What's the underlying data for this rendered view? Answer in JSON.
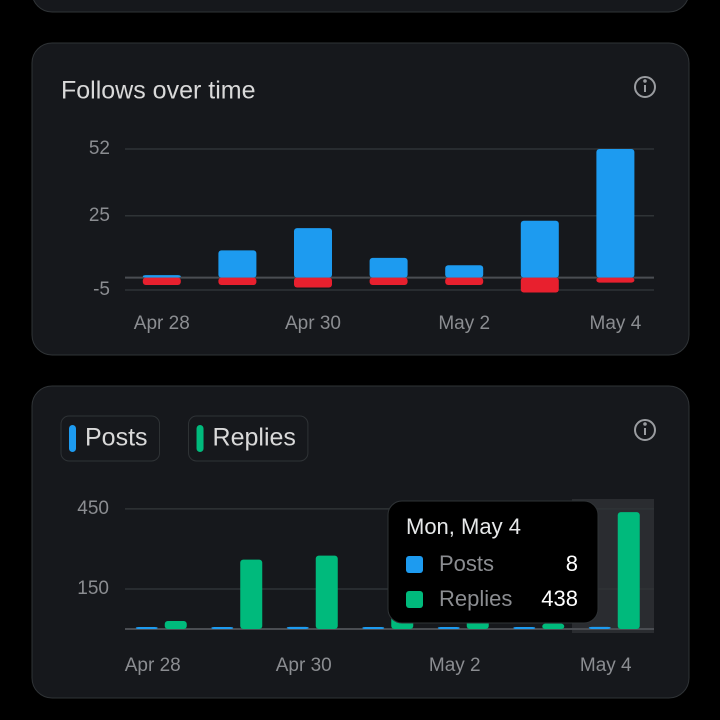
{
  "chart_data": [
    {
      "type": "bar",
      "title": "Follows over time",
      "categories": [
        "Apr 28",
        null,
        "Apr 30",
        null,
        "May 2",
        null,
        "May 4"
      ],
      "series": [
        {
          "color": "#1d9bf0",
          "values": [
            1,
            11,
            20,
            8,
            5,
            23,
            52
          ]
        },
        {
          "color": "#e8202e",
          "values": [
            -3,
            -3,
            -4,
            -3,
            -3,
            -6,
            -2
          ]
        }
      ],
      "ylim": [
        -5,
        52
      ],
      "yticks": [
        52,
        25,
        -5
      ],
      "grid": true
    },
    {
      "type": "bar",
      "grouped": true,
      "categories": [
        "Apr 28",
        null,
        "Apr 30",
        null,
        "May 2",
        null,
        "May 4"
      ],
      "series": [
        {
          "name": "Posts",
          "color": "#1d9bf0",
          "values": [
            2,
            2,
            8,
            5,
            3,
            1,
            8
          ]
        },
        {
          "name": "Replies",
          "color": "#00ba7c",
          "values": [
            30,
            260,
            275,
            60,
            50,
            20,
            438
          ]
        }
      ],
      "ylim": [
        0,
        487
      ],
      "yticks": [
        450,
        150
      ],
      "grid": true,
      "tooltip": {
        "title": "Mon, May 4"
      }
    }
  ]
}
